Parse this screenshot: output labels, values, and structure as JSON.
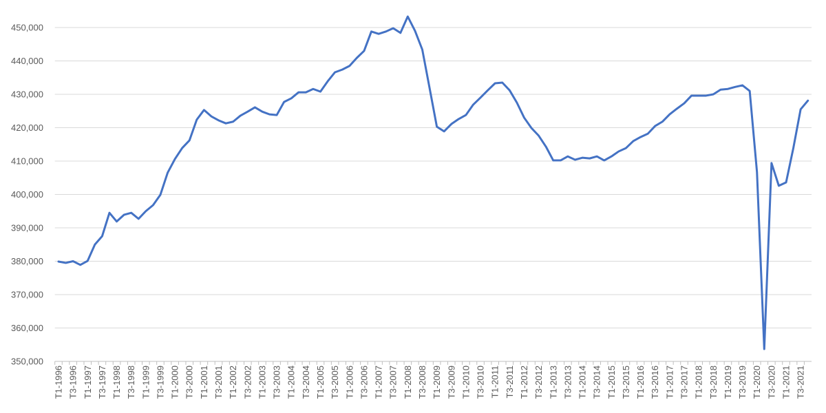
{
  "chart_data": {
    "type": "line",
    "categories": [
      "T1-1996",
      null,
      "T3-1996",
      null,
      "T1-1997",
      null,
      "T3-1997",
      null,
      "T1-1998",
      null,
      "T3-1998",
      null,
      "T1-1999",
      null,
      "T3-1999",
      null,
      "T1-2000",
      null,
      "T3-2000",
      null,
      "T1-2001",
      null,
      "T3-2001",
      null,
      "T1-2002",
      null,
      "T3-2002",
      null,
      "T1-2003",
      null,
      "T3-2003",
      null,
      "T1-2004",
      null,
      "T3-2004",
      null,
      "T1-2005",
      null,
      "T3-2005",
      null,
      "T1-2006",
      null,
      "T3-2006",
      null,
      "T1-2007",
      null,
      "T3-2007",
      null,
      "T1-2008",
      null,
      "T3-2008",
      null,
      "T1-2009",
      null,
      "T3-2009",
      null,
      "T1-2010",
      null,
      "T3-2010",
      null,
      "T1-2011",
      null,
      "T3-2011",
      null,
      "T1-2012",
      null,
      "T3-2012",
      null,
      "T1-2013",
      null,
      "T3-2013",
      null,
      "T1-2014",
      null,
      "T3-2014",
      null,
      "T1-2015",
      null,
      "T3-2015",
      null,
      "T1-2016",
      null,
      "T3-2016",
      null,
      "T1-2017",
      null,
      "T3-2017",
      null,
      "T1-2018",
      null,
      "T3-2018",
      null,
      "T1-2019",
      null,
      "T3-2019",
      null,
      "T1-2020",
      null,
      "T3-2020",
      null,
      "T1-2021",
      null,
      "T3-2021",
      null
    ],
    "values": [
      379900,
      379500,
      380000,
      378900,
      380100,
      385000,
      387500,
      394500,
      391900,
      393900,
      394500,
      392700,
      395000,
      396800,
      399900,
      406500,
      410600,
      413900,
      416200,
      422400,
      425300,
      423400,
      422200,
      421300,
      421800,
      423600,
      424800,
      426100,
      424800,
      424000,
      423800,
      427700,
      428800,
      430600,
      430600,
      431600,
      430800,
      433900,
      436600,
      437400,
      438500,
      440900,
      443000,
      448800,
      448100,
      448800,
      449800,
      448400,
      453300,
      449000,
      443400,
      431900,
      420300,
      418900,
      421100,
      422600,
      423800,
      426900,
      429000,
      431200,
      433300,
      433500,
      431200,
      427500,
      423000,
      419900,
      417600,
      414300,
      410200,
      410200,
      411400,
      410400,
      411000,
      410800,
      411400,
      410200,
      411400,
      412900,
      413900,
      416000,
      417200,
      418200,
      420500,
      421800,
      424000,
      425700,
      427300,
      429600,
      429600,
      429600,
      430000,
      431400,
      431600,
      432200,
      432700,
      431000,
      406700,
      353700,
      409400,
      402600,
      403600,
      413900,
      425500,
      428100
    ],
    "color": "#4472c4",
    "ylim": [
      350000,
      450000
    ],
    "yticks": [
      {
        "value": 350000,
        "label": "350,000"
      },
      {
        "value": 360000,
        "label": "360,000"
      },
      {
        "value": 370000,
        "label": "370,000"
      },
      {
        "value": 380000,
        "label": "380,000"
      },
      {
        "value": 390000,
        "label": "390,000"
      },
      {
        "value": 400000,
        "label": "400,000"
      },
      {
        "value": 410000,
        "label": "410,000"
      },
      {
        "value": 420000,
        "label": "420,000"
      },
      {
        "value": 430000,
        "label": "430,000"
      },
      {
        "value": 440000,
        "label": "440,000"
      },
      {
        "value": 450000,
        "label": "450,000"
      }
    ],
    "grid": true
  }
}
